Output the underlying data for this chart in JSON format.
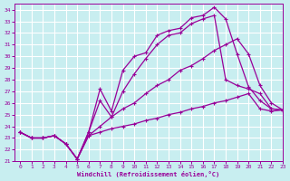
{
  "bg_color": "#c8eef0",
  "grid_color": "#ffffff",
  "line_color": "#990099",
  "xlabel": "Windchill (Refroidissement éolien,°C)",
  "xlim": [
    -0.5,
    23
  ],
  "ylim": [
    21,
    34.5
  ],
  "xticks": [
    0,
    1,
    2,
    3,
    4,
    5,
    6,
    7,
    8,
    9,
    10,
    11,
    12,
    13,
    14,
    15,
    16,
    17,
    18,
    19,
    20,
    21,
    22,
    23
  ],
  "yticks": [
    21,
    22,
    23,
    24,
    25,
    26,
    27,
    28,
    29,
    30,
    31,
    32,
    33,
    34
  ],
  "curves": [
    {
      "x": [
        0,
        1,
        2,
        3,
        4,
        5,
        6,
        7,
        8,
        9,
        10,
        11,
        12,
        13,
        14,
        15,
        16,
        17,
        18,
        19,
        20,
        21,
        22,
        23
      ],
      "y": [
        23.5,
        23.0,
        23.0,
        23.2,
        22.5,
        21.2,
        23.5,
        27.2,
        25.3,
        28.8,
        30.0,
        30.3,
        31.8,
        32.2,
        32.4,
        33.3,
        33.5,
        34.2,
        33.2,
        30.2,
        27.4,
        26.2,
        25.5,
        25.4
      ]
    },
    {
      "x": [
        0,
        1,
        2,
        3,
        4,
        5,
        6,
        7,
        8,
        9,
        10,
        11,
        12,
        13,
        14,
        15,
        16,
        17,
        18,
        19,
        20,
        21,
        22,
        23
      ],
      "y": [
        23.5,
        23.0,
        23.0,
        23.2,
        22.5,
        21.2,
        23.5,
        26.2,
        24.8,
        27.0,
        28.5,
        29.8,
        31.0,
        31.8,
        32.0,
        32.8,
        33.2,
        33.5,
        28.0,
        27.5,
        27.2,
        26.8,
        25.5,
        25.4
      ]
    },
    {
      "x": [
        0,
        1,
        2,
        3,
        4,
        5,
        6,
        7,
        8,
        9,
        10,
        11,
        12,
        13,
        14,
        15,
        16,
        17,
        18,
        19,
        20,
        21,
        22,
        23
      ],
      "y": [
        23.5,
        23.0,
        23.0,
        23.2,
        22.5,
        21.2,
        23.2,
        24.0,
        24.8,
        25.5,
        26.0,
        26.8,
        27.5,
        28.0,
        28.8,
        29.2,
        29.8,
        30.5,
        31.0,
        31.5,
        30.2,
        27.5,
        26.0,
        25.4
      ]
    },
    {
      "x": [
        0,
        1,
        2,
        3,
        4,
        5,
        6,
        7,
        8,
        9,
        10,
        11,
        12,
        13,
        14,
        15,
        16,
        17,
        18,
        19,
        20,
        21,
        22,
        23
      ],
      "y": [
        23.5,
        23.0,
        23.0,
        23.2,
        22.5,
        21.2,
        23.2,
        23.5,
        23.8,
        24.0,
        24.2,
        24.5,
        24.7,
        25.0,
        25.2,
        25.5,
        25.7,
        26.0,
        26.2,
        26.5,
        26.8,
        25.5,
        25.3,
        25.4
      ]
    }
  ]
}
